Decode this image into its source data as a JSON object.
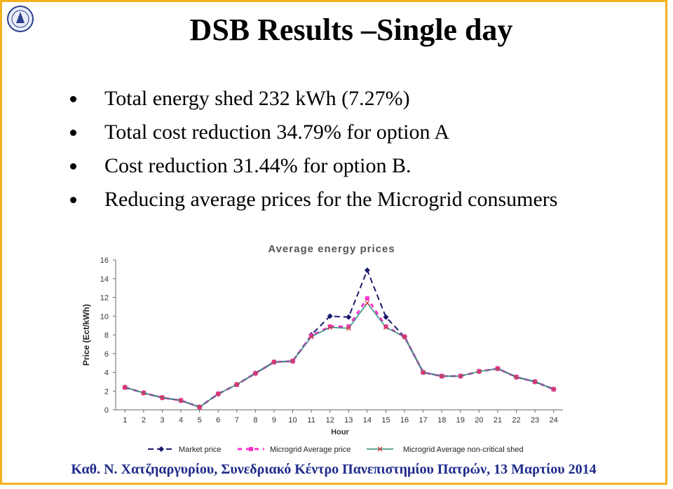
{
  "slide": {
    "title": "DSB Results –Single day",
    "bullets": [
      "Total energy shed 232 kWh (7.27%)",
      "Total cost reduction 34.79% for option A",
      "Cost reduction 31.44% for option B.",
      "Reducing average prices for the Microgrid consumers"
    ],
    "footer": "Καθ. Ν. Χατζηαργυρίου, Συνεδριακό Κέντρο Πανεπιστημίου Πατρών, 13 Μαρτίου 2014"
  },
  "colors": {
    "border": "#f2b21e",
    "footer_text": "#1f2b8a",
    "market": "#1a1a6e",
    "microgrid": "#ff33cc",
    "noncritical": "#2e8b7a"
  },
  "chart_data": {
    "type": "line",
    "title": "Average energy prices",
    "xlabel": "Hour",
    "ylabel": "Price (Ect/kWh)",
    "categories": [
      "1",
      "2",
      "3",
      "4",
      "5",
      "6",
      "7",
      "8",
      "9",
      "10",
      "11",
      "12",
      "13",
      "14",
      "15",
      "16",
      "17",
      "18",
      "19",
      "20",
      "21",
      "22",
      "23",
      "24"
    ],
    "ylim": [
      0,
      16
    ],
    "yticks": [
      "0",
      "2",
      "4",
      "6",
      "8",
      "10",
      "12",
      "14",
      "16"
    ],
    "legend_position": "bottom",
    "series": [
      {
        "name": "Market price",
        "values": [
          2.4,
          1.8,
          1.3,
          1.0,
          0.3,
          1.7,
          2.7,
          3.9,
          5.1,
          5.2,
          8.0,
          10.0,
          9.9,
          14.9,
          9.9,
          7.8,
          4.0,
          3.6,
          3.6,
          4.1,
          4.4,
          3.5,
          3.0,
          2.2
        ]
      },
      {
        "name": "Microgrid Average price",
        "values": [
          2.4,
          1.8,
          1.3,
          1.0,
          0.3,
          1.7,
          2.7,
          3.9,
          5.1,
          5.2,
          7.9,
          8.9,
          8.9,
          11.9,
          8.9,
          7.8,
          4.0,
          3.6,
          3.6,
          4.1,
          4.4,
          3.5,
          3.0,
          2.2
        ]
      },
      {
        "name": "Microgrid Average non-critical shed",
        "values": [
          2.4,
          1.8,
          1.3,
          1.0,
          0.3,
          1.7,
          2.7,
          3.9,
          5.1,
          5.2,
          7.8,
          8.8,
          8.7,
          11.4,
          8.8,
          7.8,
          4.0,
          3.6,
          3.6,
          4.1,
          4.4,
          3.5,
          3.0,
          2.2
        ]
      }
    ]
  }
}
